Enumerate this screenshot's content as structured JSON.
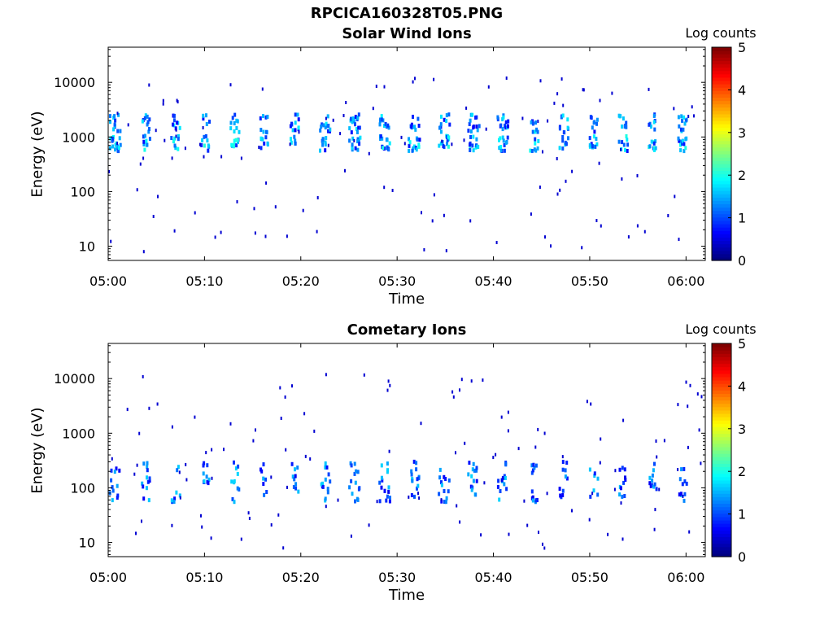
{
  "figure": {
    "title": "RPCICA160328T05.PNG"
  },
  "chart_data": [
    {
      "type": "heatmap",
      "title": "Solar Wind Ions",
      "xlabel": "Time",
      "ylabel": "Energy (eV)",
      "yscale": "log",
      "xlim": [
        "05:00",
        "06:02"
      ],
      "x_ticks": [
        "05:00",
        "05:10",
        "05:20",
        "05:30",
        "05:40",
        "05:50",
        "06:00"
      ],
      "y_ticks": [
        "10",
        "100",
        "1000",
        "10000"
      ],
      "colorbar": {
        "label": "Log counts",
        "ticks": [
          "0",
          "1",
          "2",
          "3",
          "4",
          "5"
        ],
        "range": [
          0,
          5
        ],
        "colormap": "jet"
      },
      "grid": false,
      "sweep_bands": [
        {
          "energy_low": 550,
          "energy_high": 1050,
          "level": 1.6
        },
        {
          "energy_low": 1200,
          "energy_high": 2600,
          "level": 1.4
        }
      ]
    },
    {
      "type": "heatmap",
      "title": "Cometary Ions",
      "xlabel": "Time",
      "ylabel": "Energy (eV)",
      "yscale": "log",
      "xlim": [
        "05:00",
        "06:02"
      ],
      "x_ticks": [
        "05:00",
        "05:10",
        "05:20",
        "05:30",
        "05:40",
        "05:50",
        "06:00"
      ],
      "y_ticks": [
        "10",
        "100",
        "1000",
        "10000"
      ],
      "colorbar": {
        "label": "Log counts",
        "ticks": [
          "0",
          "1",
          "2",
          "3",
          "4",
          "5"
        ],
        "range": [
          0,
          5
        ],
        "colormap": "jet"
      },
      "grid": false,
      "sweep_bands": [
        {
          "energy_low": 55,
          "energy_high": 300,
          "level": 1.3
        }
      ]
    }
  ]
}
